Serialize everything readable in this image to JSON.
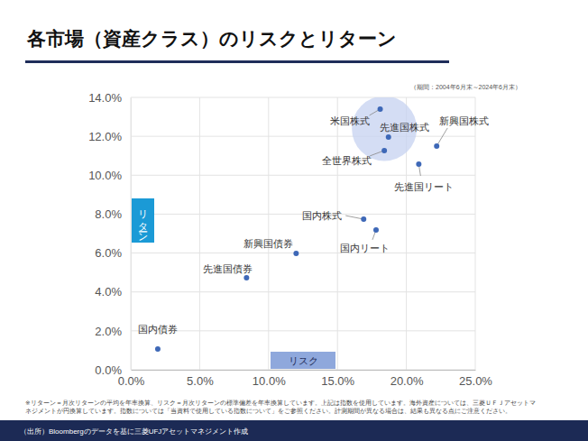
{
  "chart_data": {
    "type": "scatter",
    "title": "各市場（資産クラス）のリスクとリターン",
    "period": "（期間：2004年6月末～2024年6月末）",
    "x_label": "リスク",
    "y_label": "リターン",
    "labels": [
      "国内債券",
      "先進国債券",
      "新興国債券",
      "国内株式",
      "国内リート",
      "先進国リート",
      "全世界株式",
      "先進国株式",
      "米国株式",
      "新興国株式"
    ],
    "x": [
      1.96,
      8.4,
      12.0,
      16.9,
      17.8,
      20.9,
      18.4,
      18.7,
      18.1,
      22.2
    ],
    "values": [
      1.07,
      4.73,
      5.98,
      7.74,
      7.19,
      10.57,
      11.27,
      11.96,
      13.4,
      11.5
    ],
    "color": "#3e68b7",
    "marker": "circle",
    "xlim": [
      0,
      25
    ],
    "ylim": [
      0,
      14
    ],
    "xticks": [
      {
        "value": 0,
        "label": "0.0%"
      },
      {
        "value": 5,
        "label": "5.0%"
      },
      {
        "value": 10,
        "label": "10.0%"
      },
      {
        "value": 15,
        "label": "15.0%"
      },
      {
        "value": 20,
        "label": "20.0%"
      },
      {
        "value": 25,
        "label": "25.0%"
      }
    ],
    "yticks": [
      {
        "value": 0,
        "label": "0.0%"
      },
      {
        "value": 2,
        "label": "2.0%"
      },
      {
        "value": 4,
        "label": "4.0%"
      },
      {
        "value": 6,
        "label": "6.0%"
      },
      {
        "value": 8,
        "label": "8.0%"
      },
      {
        "value": 10,
        "label": "10.0%"
      },
      {
        "value": 12,
        "label": "12.0%"
      },
      {
        "value": 14,
        "label": "14.0%"
      }
    ],
    "grid": true,
    "notes": [
      "※リターン＝月次リターンの平均を年率換算、リスク＝月次リターンの標準偏差を年率換算しています。上記は指数を使用しています。海外資産については、三菱ＵＦＪアセットマ",
      "ネジメントが円換算しています。指数については「当資料で使用している指数について」をご参照ください。計測期間が異なる場合は、結果も異なる点にご注意ください。"
    ],
    "source": "（出所）Bloombergのデータを基に三菱UFJアセットマネジメント作成"
  }
}
